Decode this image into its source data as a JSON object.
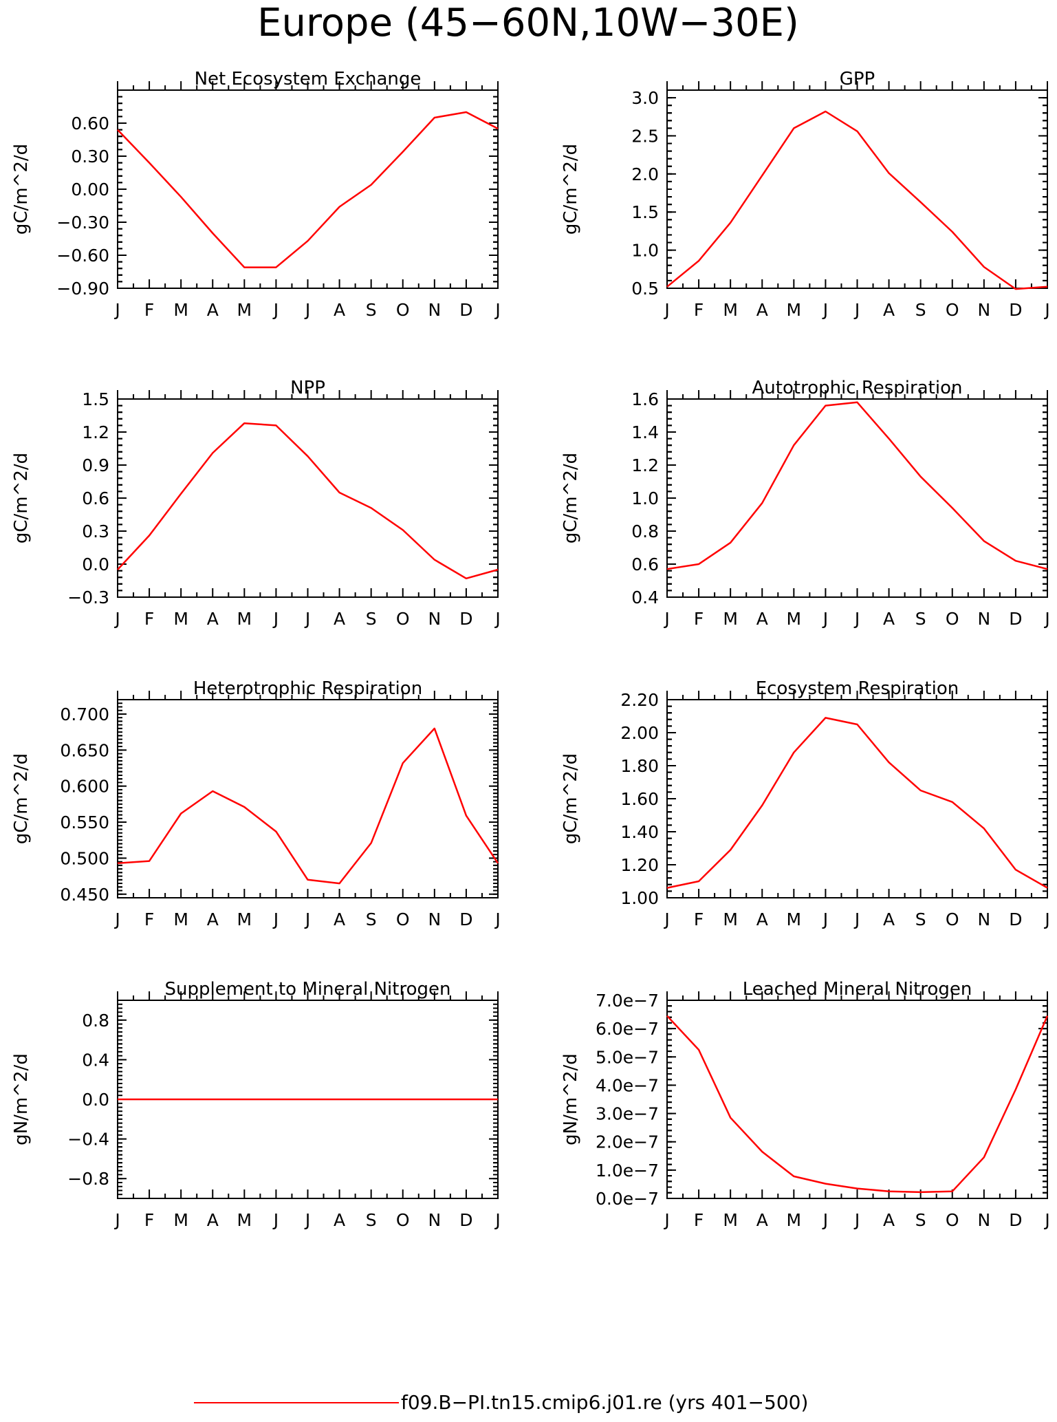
{
  "suptitle": "Europe (45−60N,10W−30E)",
  "legend": {
    "label": "f09.B−PI.tn15.cmip6.j01.re (yrs 401−500)",
    "color": "#ff0000"
  },
  "colors": {
    "series": "#ff0000",
    "axes": "#000000"
  },
  "chart_data": [
    {
      "type": "line",
      "title": "Net Ecosystem Exchange",
      "ylabel": "gC/m^2/d",
      "categories": [
        "J",
        "F",
        "M",
        "A",
        "M",
        "J",
        "J",
        "A",
        "S",
        "O",
        "N",
        "D",
        "J"
      ],
      "ylim": [
        -0.9,
        0.9
      ],
      "yticks": [
        -0.9,
        -0.6,
        -0.3,
        0.0,
        0.3,
        0.6
      ],
      "ytick_labels": [
        "−0.90",
        "−0.60",
        "−0.30",
        "0.00",
        "0.30",
        "0.60"
      ],
      "series": [
        {
          "values": [
            0.54,
            0.24,
            -0.07,
            -0.4,
            -0.71,
            -0.71,
            -0.47,
            -0.16,
            0.04,
            0.34,
            0.65,
            0.7,
            0.55
          ]
        }
      ]
    },
    {
      "type": "line",
      "title": "GPP",
      "ylabel": "gC/m^2/d",
      "categories": [
        "J",
        "F",
        "M",
        "A",
        "M",
        "J",
        "J",
        "A",
        "S",
        "O",
        "N",
        "D",
        "J"
      ],
      "ylim": [
        0.5,
        3.1
      ],
      "yticks": [
        0.5,
        1.0,
        1.5,
        2.0,
        2.5,
        3.0
      ],
      "ytick_labels": [
        "0.5",
        "1.0",
        "1.5",
        "2.0",
        "2.5",
        "3.0"
      ],
      "series": [
        {
          "values": [
            0.52,
            0.86,
            1.36,
            1.98,
            2.6,
            2.82,
            2.56,
            2.01,
            1.63,
            1.24,
            0.78,
            0.49,
            0.52
          ]
        }
      ]
    },
    {
      "type": "line",
      "title": "NPP",
      "ylabel": "gC/m^2/d",
      "categories": [
        "J",
        "F",
        "M",
        "A",
        "M",
        "J",
        "J",
        "A",
        "S",
        "O",
        "N",
        "D",
        "J"
      ],
      "ylim": [
        -0.3,
        1.5
      ],
      "yticks": [
        -0.3,
        0.0,
        0.3,
        0.6,
        0.9,
        1.2,
        1.5
      ],
      "ytick_labels": [
        "−0.3",
        "0.0",
        "0.3",
        "0.6",
        "0.9",
        "1.2",
        "1.5"
      ],
      "series": [
        {
          "values": [
            -0.05,
            0.26,
            0.64,
            1.01,
            1.28,
            1.26,
            0.98,
            0.65,
            0.51,
            0.31,
            0.04,
            -0.13,
            -0.05
          ]
        }
      ]
    },
    {
      "type": "line",
      "title": "Autotrophic Respiration",
      "ylabel": "gC/m^2/d",
      "categories": [
        "J",
        "F",
        "M",
        "A",
        "M",
        "J",
        "J",
        "A",
        "S",
        "O",
        "N",
        "D",
        "J"
      ],
      "ylim": [
        0.4,
        1.6
      ],
      "yticks": [
        0.4,
        0.6,
        0.8,
        1.0,
        1.2,
        1.4,
        1.6
      ],
      "ytick_labels": [
        "0.4",
        "0.6",
        "0.8",
        "1.0",
        "1.2",
        "1.4",
        "1.6"
      ],
      "series": [
        {
          "values": [
            0.57,
            0.6,
            0.73,
            0.97,
            1.32,
            1.56,
            1.58,
            1.36,
            1.13,
            0.94,
            0.74,
            0.62,
            0.57
          ]
        }
      ]
    },
    {
      "type": "line",
      "title": "Heterotrophic Respiration",
      "ylabel": "gC/m^2/d",
      "categories": [
        "J",
        "F",
        "M",
        "A",
        "M",
        "J",
        "J",
        "A",
        "S",
        "O",
        "N",
        "D",
        "J"
      ],
      "ylim": [
        0.445,
        0.72
      ],
      "yticks": [
        0.45,
        0.5,
        0.55,
        0.6,
        0.65,
        0.7
      ],
      "ytick_labels": [
        "0.450",
        "0.500",
        "0.550",
        "0.600",
        "0.650",
        "0.700"
      ],
      "series": [
        {
          "values": [
            0.493,
            0.496,
            0.562,
            0.593,
            0.571,
            0.537,
            0.47,
            0.465,
            0.521,
            0.632,
            0.68,
            0.559,
            0.493
          ]
        }
      ]
    },
    {
      "type": "line",
      "title": "Ecosystem Respiration",
      "ylabel": "gC/m^2/d",
      "categories": [
        "J",
        "F",
        "M",
        "A",
        "M",
        "J",
        "J",
        "A",
        "S",
        "O",
        "N",
        "D",
        "J"
      ],
      "ylim": [
        1.0,
        2.2
      ],
      "yticks": [
        1.0,
        1.2,
        1.4,
        1.6,
        1.8,
        2.0,
        2.2
      ],
      "ytick_labels": [
        "1.00",
        "1.20",
        "1.40",
        "1.60",
        "1.80",
        "2.00",
        "2.20"
      ],
      "series": [
        {
          "values": [
            1.06,
            1.1,
            1.29,
            1.56,
            1.88,
            2.09,
            2.05,
            1.82,
            1.65,
            1.58,
            1.42,
            1.17,
            1.06
          ]
        }
      ]
    },
    {
      "type": "line",
      "title": "Supplement to Mineral Nitrogen",
      "ylabel": "gN/m^2/d",
      "categories": [
        "J",
        "F",
        "M",
        "A",
        "M",
        "J",
        "J",
        "A",
        "S",
        "O",
        "N",
        "D",
        "J"
      ],
      "ylim": [
        -1.0,
        1.0
      ],
      "yticks": [
        -0.8,
        -0.4,
        0.0,
        0.4,
        0.8
      ],
      "ytick_labels": [
        "−0.8",
        "−0.4",
        "0.0",
        "0.4",
        "0.8"
      ],
      "series": [
        {
          "values": [
            0,
            0,
            0,
            0,
            0,
            0,
            0,
            0,
            0,
            0,
            0,
            0,
            0
          ]
        }
      ]
    },
    {
      "type": "line",
      "title": "Leached Mineral Nitrogen",
      "ylabel": "gN/m^2/d",
      "categories": [
        "J",
        "F",
        "M",
        "A",
        "M",
        "J",
        "J",
        "A",
        "S",
        "O",
        "N",
        "D",
        "J"
      ],
      "ylim": [
        0.0,
        7e-07
      ],
      "yticks": [
        0,
        1e-07,
        2e-07,
        3e-07,
        4e-07,
        5e-07,
        6e-07,
        7e-07
      ],
      "ytick_labels": [
        "0.0e−7",
        "1.0e−7",
        "2.0e−7",
        "3.0e−7",
        "4.0e−7",
        "5.0e−7",
        "6.0e−7",
        "7.0e−7"
      ],
      "series": [
        {
          "values": [
            6.45e-07,
            5.25e-07,
            2.85e-07,
            1.65e-07,
            7.8e-08,
            5.2e-08,
            3.5e-08,
            2.5e-08,
            2.2e-08,
            2.5e-08,
            1.45e-07,
            3.85e-07,
            6.45e-07
          ]
        }
      ]
    }
  ]
}
